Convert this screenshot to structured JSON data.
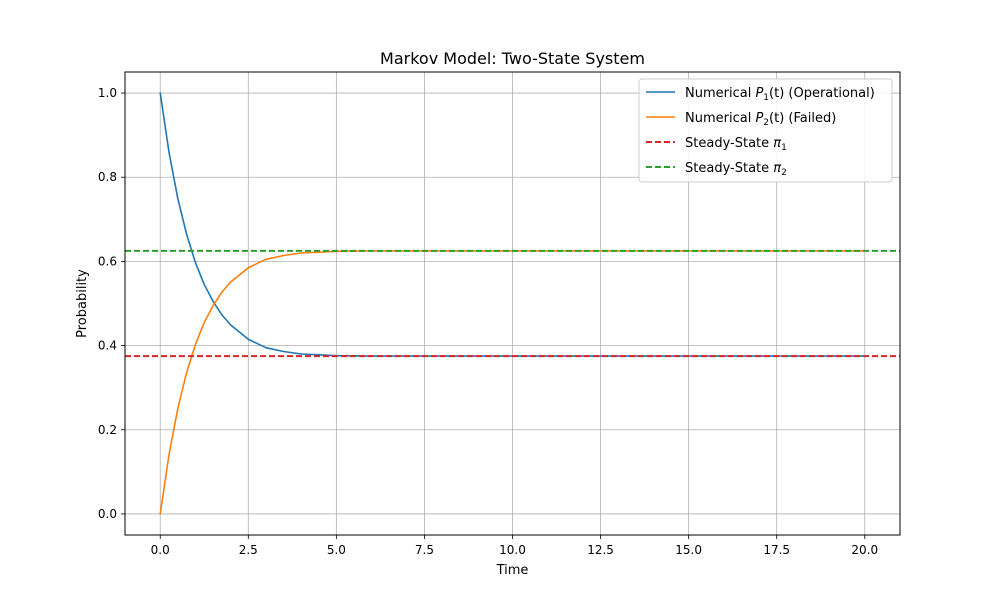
{
  "chart_data": {
    "type": "line",
    "title": "Markov Model: Two-State System",
    "xlabel": "Time",
    "ylabel": "Probability",
    "xlim": [
      -1.0,
      21.0
    ],
    "ylim": [
      -0.05,
      1.05
    ],
    "x_ticks": [
      0.0,
      2.5,
      5.0,
      7.5,
      10.0,
      12.5,
      15.0,
      17.5,
      20.0
    ],
    "x_tick_labels": [
      "0.0",
      "2.5",
      "5.0",
      "7.5",
      "10.0",
      "12.5",
      "15.0",
      "17.5",
      "20.0"
    ],
    "y_ticks": [
      0.0,
      0.2,
      0.4,
      0.6,
      0.8,
      1.0
    ],
    "y_tick_labels": [
      "0.0",
      "0.2",
      "0.4",
      "0.6",
      "0.8",
      "1.0"
    ],
    "grid": true,
    "legend_position": "top-right",
    "x": [
      0,
      0.25,
      0.5,
      0.75,
      1.0,
      1.25,
      1.5,
      1.75,
      2.0,
      2.5,
      3.0,
      3.5,
      4.0,
      4.5,
      5.0,
      6.0,
      7.0,
      8.0,
      10.0,
      12.5,
      15.0,
      17.5,
      20.0
    ],
    "series": [
      {
        "legend_prefix": "Numerical ",
        "legend_var": "P",
        "legend_sub": "1",
        "legend_suffix": "(t) (Operational)",
        "color": "#1f77b4",
        "dash": "solid",
        "values": [
          1.0,
          0.859,
          0.749,
          0.664,
          0.597,
          0.545,
          0.505,
          0.473,
          0.449,
          0.415,
          0.395,
          0.386,
          0.38,
          0.378,
          0.376,
          0.375,
          0.375,
          0.375,
          0.375,
          0.375,
          0.375,
          0.375,
          0.375
        ]
      },
      {
        "legend_prefix": "Numerical ",
        "legend_var": "P",
        "legend_sub": "2",
        "legend_suffix": "(t) (Failed)",
        "color": "#ff7f0e",
        "dash": "solid",
        "values": [
          0.0,
          0.141,
          0.251,
          0.336,
          0.403,
          0.455,
          0.495,
          0.527,
          0.551,
          0.585,
          0.605,
          0.614,
          0.62,
          0.622,
          0.624,
          0.625,
          0.625,
          0.625,
          0.625,
          0.625,
          0.625,
          0.625,
          0.625
        ]
      },
      {
        "legend_prefix": "Steady-State ",
        "legend_var": "π",
        "legend_sub": "1",
        "legend_suffix": "",
        "color": "#d62728",
        "dash": "dashed",
        "hline": 0.375
      },
      {
        "legend_prefix": "Steady-State ",
        "legend_var": "π",
        "legend_sub": "2",
        "legend_suffix": "",
        "color": "#2ca02c",
        "dash": "dashed",
        "hline": 0.625
      }
    ]
  }
}
